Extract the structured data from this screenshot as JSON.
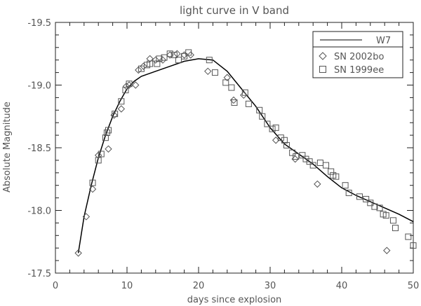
{
  "chart_data": {
    "type": "scatter",
    "title": "light curve in V band",
    "xlabel": "days since explosion",
    "ylabel": "Absolute Magnitude",
    "xlim": [
      0,
      50
    ],
    "ylim": [
      -17.5,
      -19.5
    ],
    "y_inverted": true,
    "grid": false,
    "legend_placement": "top-right",
    "x_ticks": [
      0,
      10,
      20,
      30,
      40,
      50
    ],
    "y_ticks": [
      -19.5,
      -19.0,
      -18.5,
      -18.0,
      -17.5
    ],
    "x_tick_labels": [
      "0",
      "10",
      "20",
      "30",
      "40",
      "50"
    ],
    "y_tick_labels": [
      "-19.5",
      "-19.0",
      "-18.5",
      "-18.0",
      "-17.5"
    ],
    "series": [
      {
        "name": "W7",
        "kind": "line",
        "color": "#000000",
        "points": [
          [
            3.2,
            -17.66
          ],
          [
            4.0,
            -17.95
          ],
          [
            5.0,
            -18.2
          ],
          [
            6.0,
            -18.42
          ],
          [
            7.0,
            -18.6
          ],
          [
            8.0,
            -18.75
          ],
          [
            9.0,
            -18.87
          ],
          [
            10.0,
            -18.97
          ],
          [
            11.0,
            -19.03
          ],
          [
            12.0,
            -19.07
          ],
          [
            14.0,
            -19.11
          ],
          [
            16.0,
            -19.15
          ],
          [
            18.0,
            -19.19
          ],
          [
            20.0,
            -19.21
          ],
          [
            22.0,
            -19.2
          ],
          [
            24.0,
            -19.11
          ],
          [
            26.0,
            -18.97
          ],
          [
            28.0,
            -18.83
          ],
          [
            30.0,
            -18.66
          ],
          [
            32.0,
            -18.53
          ],
          [
            34.0,
            -18.45
          ],
          [
            36.0,
            -18.37
          ],
          [
            38.0,
            -18.27
          ],
          [
            40.0,
            -18.18
          ],
          [
            42.0,
            -18.12
          ],
          [
            44.0,
            -18.07
          ],
          [
            46.0,
            -18.02
          ],
          [
            48.0,
            -17.97
          ],
          [
            50.0,
            -17.91
          ]
        ]
      },
      {
        "name": "SN 2002bo",
        "kind": "scatter",
        "marker": "diamond",
        "color": "#555555",
        "points": [
          [
            3.2,
            -17.66
          ],
          [
            4.3,
            -17.95
          ],
          [
            5.2,
            -18.17
          ],
          [
            6.0,
            -18.44
          ],
          [
            7.4,
            -18.49
          ],
          [
            8.2,
            -18.76
          ],
          [
            9.2,
            -18.81
          ],
          [
            9.9,
            -18.99
          ],
          [
            10.3,
            -19.0
          ],
          [
            11.2,
            -19.0
          ],
          [
            11.6,
            -19.12
          ],
          [
            12.3,
            -19.15
          ],
          [
            13.2,
            -19.21
          ],
          [
            14.0,
            -19.2
          ],
          [
            15.0,
            -19.2
          ],
          [
            16.0,
            -19.24
          ],
          [
            17.0,
            -19.25
          ],
          [
            18.0,
            -19.24
          ],
          [
            18.9,
            -19.24
          ],
          [
            21.3,
            -19.11
          ],
          [
            24.0,
            -19.06
          ],
          [
            24.9,
            -18.88
          ],
          [
            26.3,
            -18.92
          ],
          [
            30.8,
            -18.56
          ],
          [
            33.5,
            -18.41
          ],
          [
            36.6,
            -18.21
          ],
          [
            46.3,
            -17.68
          ]
        ]
      },
      {
        "name": "SN 1999ee",
        "kind": "scatter",
        "marker": "square",
        "color": "#555555",
        "points": [
          [
            5.2,
            -18.22
          ],
          [
            6.0,
            -18.4
          ],
          [
            6.4,
            -18.45
          ],
          [
            7.0,
            -18.58
          ],
          [
            7.2,
            -18.62
          ],
          [
            7.4,
            -18.64
          ],
          [
            8.3,
            -18.77
          ],
          [
            9.2,
            -18.87
          ],
          [
            9.8,
            -18.96
          ],
          [
            10.3,
            -19.01
          ],
          [
            12.0,
            -19.13
          ],
          [
            12.8,
            -19.16
          ],
          [
            13.2,
            -19.17
          ],
          [
            14.2,
            -19.17
          ],
          [
            14.5,
            -19.21
          ],
          [
            15.2,
            -19.22
          ],
          [
            16.0,
            -19.25
          ],
          [
            16.6,
            -19.24
          ],
          [
            17.2,
            -19.2
          ],
          [
            18.0,
            -19.23
          ],
          [
            18.6,
            -19.26
          ],
          [
            21.5,
            -19.2
          ],
          [
            22.3,
            -19.1
          ],
          [
            23.8,
            -19.02
          ],
          [
            24.6,
            -18.98
          ],
          [
            25.0,
            -18.86
          ],
          [
            26.5,
            -18.94
          ],
          [
            27.0,
            -18.85
          ],
          [
            28.5,
            -18.8
          ],
          [
            28.9,
            -18.75
          ],
          [
            29.6,
            -18.69
          ],
          [
            30.3,
            -18.65
          ],
          [
            30.8,
            -18.66
          ],
          [
            31.5,
            -18.58
          ],
          [
            32.0,
            -18.56
          ],
          [
            32.3,
            -18.52
          ],
          [
            33.1,
            -18.46
          ],
          [
            33.6,
            -18.43
          ],
          [
            34.5,
            -18.44
          ],
          [
            35.0,
            -18.41
          ],
          [
            35.5,
            -18.39
          ],
          [
            36.0,
            -18.36
          ],
          [
            37.0,
            -18.38
          ],
          [
            37.8,
            -18.36
          ],
          [
            38.5,
            -18.31
          ],
          [
            38.8,
            -18.28
          ],
          [
            39.2,
            -18.27
          ],
          [
            40.5,
            -18.2
          ],
          [
            41.0,
            -18.14
          ],
          [
            42.5,
            -18.11
          ],
          [
            43.4,
            -18.09
          ],
          [
            44.0,
            -18.06
          ],
          [
            44.6,
            -18.03
          ],
          [
            45.3,
            -18.02
          ],
          [
            45.8,
            -17.97
          ],
          [
            46.2,
            -17.96
          ],
          [
            47.2,
            -17.92
          ],
          [
            47.5,
            -17.86
          ],
          [
            49.3,
            -17.79
          ],
          [
            50.0,
            -17.72
          ]
        ]
      }
    ]
  }
}
